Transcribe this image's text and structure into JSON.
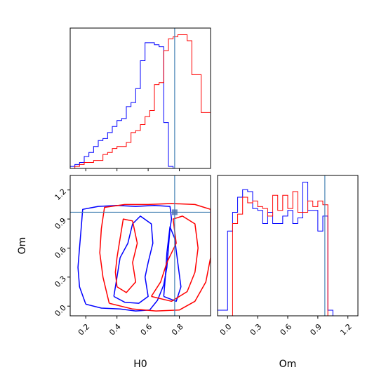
{
  "chart_data": {
    "type": "corner",
    "parameters": [
      "H0",
      "Om"
    ],
    "truth": {
      "H0": 0.77,
      "Om": 0.97
    },
    "truth_color": "#4682b4",
    "series": [
      {
        "color": "#0000ff"
      },
      {
        "color": "#ff0000"
      }
    ],
    "panels": [
      {
        "id": "hist-H0",
        "type": "histogram",
        "xlim": [
          0.1,
          1.0
        ],
        "xticks": [
          0.2,
          0.4,
          0.6,
          0.8
        ],
        "show_xtick_labels": false,
        "bin_edges": [
          0.1,
          0.13,
          0.16,
          0.19,
          0.22,
          0.25,
          0.28,
          0.31,
          0.34,
          0.37,
          0.4,
          0.43,
          0.46,
          0.49,
          0.52,
          0.55,
          0.58,
          0.61,
          0.64,
          0.67,
          0.7,
          0.73,
          0.76,
          0.79,
          0.82,
          0.85,
          0.88,
          0.91,
          0.94,
          0.97,
          1.0
        ],
        "counts": [
          [
            1,
            2,
            3,
            6,
            8,
            11,
            14,
            15,
            18,
            21,
            24,
            25,
            31,
            33,
            40,
            54,
            63,
            63,
            62,
            61,
            23,
            1,
            0,
            0,
            0,
            0,
            0,
            0,
            0,
            0
          ],
          [
            0,
            1,
            2,
            3,
            3,
            4,
            4,
            7,
            8,
            10,
            11,
            11,
            13,
            18,
            19,
            22,
            26,
            29,
            42,
            43,
            59,
            65,
            66,
            67,
            67,
            64,
            47,
            47,
            28,
            28
          ]
        ]
      },
      {
        "id": "contour-H0-Om",
        "type": "contour",
        "xlim": [
          0.1,
          1.0
        ],
        "ylim": [
          -0.1,
          1.35
        ],
        "xticks": [
          0.2,
          0.4,
          0.6,
          0.8
        ],
        "yticks": [
          0.0,
          0.3,
          0.6,
          0.9,
          1.2
        ],
        "xtick_labels": [
          "0.2",
          "0.4",
          "0.6",
          "0.8"
        ],
        "ytick_labels": [
          "0.0",
          "0.3",
          "0.6",
          "0.9",
          "1.2"
        ],
        "xlabel": "H0",
        "ylabel": "Om",
        "contours": [
          [
            [
              [
                0.2,
                0.02
              ],
              [
                0.3,
                -0.02
              ],
              [
                0.42,
                -0.03
              ],
              [
                0.52,
                -0.05
              ],
              [
                0.61,
                -0.04
              ],
              [
                0.66,
                0.06
              ],
              [
                0.7,
                0.22
              ],
              [
                0.72,
                0.4
              ],
              [
                0.73,
                0.6
              ],
              [
                0.74,
                0.8
              ],
              [
                0.75,
                0.9
              ],
              [
                0.74,
                1.03
              ],
              [
                0.64,
                1.04
              ],
              [
                0.52,
                1.03
              ],
              [
                0.4,
                1.04
              ],
              [
                0.28,
                1.03
              ],
              [
                0.18,
                1.0
              ],
              [
                0.17,
                0.8
              ],
              [
                0.16,
                0.6
              ],
              [
                0.15,
                0.4
              ],
              [
                0.16,
                0.2
              ],
              [
                0.2,
                0.02
              ]
            ],
            [
              [
                0.38,
                0.1
              ],
              [
                0.45,
                0.04
              ],
              [
                0.54,
                0.03
              ],
              [
                0.6,
                0.1
              ],
              [
                0.58,
                0.3
              ],
              [
                0.6,
                0.45
              ],
              [
                0.63,
                0.65
              ],
              [
                0.62,
                0.85
              ],
              [
                0.55,
                0.93
              ],
              [
                0.5,
                0.85
              ],
              [
                0.47,
                0.65
              ],
              [
                0.42,
                0.5
              ],
              [
                0.4,
                0.3
              ],
              [
                0.38,
                0.1
              ]
            ],
            [
              [
                0.7,
                0.1
              ],
              [
                0.78,
                0.05
              ],
              [
                0.81,
                0.2
              ],
              [
                0.79,
                0.45
              ],
              [
                0.77,
                0.7
              ],
              [
                0.74,
                0.82
              ],
              [
                0.72,
                0.55
              ],
              [
                0.71,
                0.3
              ],
              [
                0.7,
                0.1
              ]
            ]
          ],
          [
            [
              [
                0.35,
                0.03
              ],
              [
                0.5,
                -0.03
              ],
              [
                0.65,
                -0.05
              ],
              [
                0.8,
                -0.04
              ],
              [
                0.9,
                0.05
              ],
              [
                0.97,
                0.25
              ],
              [
                1.0,
                0.5
              ],
              [
                1.0,
                0.75
              ],
              [
                1.0,
                1.0
              ],
              [
                0.9,
                1.05
              ],
              [
                0.75,
                1.06
              ],
              [
                0.6,
                1.05
              ],
              [
                0.45,
                1.05
              ],
              [
                0.32,
                1.02
              ],
              [
                0.3,
                0.8
              ],
              [
                0.29,
                0.55
              ],
              [
                0.31,
                0.3
              ],
              [
                0.35,
                0.03
              ]
            ],
            [
              [
                0.62,
                0.1
              ],
              [
                0.75,
                0.05
              ],
              [
                0.85,
                0.15
              ],
              [
                0.9,
                0.35
              ],
              [
                0.92,
                0.6
              ],
              [
                0.9,
                0.85
              ],
              [
                0.82,
                0.93
              ],
              [
                0.76,
                0.9
              ],
              [
                0.78,
                0.65
              ],
              [
                0.72,
                0.45
              ],
              [
                0.68,
                0.25
              ],
              [
                0.62,
                0.1
              ]
            ],
            [
              [
                0.4,
                0.2
              ],
              [
                0.46,
                0.14
              ],
              [
                0.52,
                0.25
              ],
              [
                0.5,
                0.45
              ],
              [
                0.53,
                0.65
              ],
              [
                0.5,
                0.88
              ],
              [
                0.44,
                0.9
              ],
              [
                0.42,
                0.7
              ],
              [
                0.4,
                0.5
              ],
              [
                0.39,
                0.35
              ],
              [
                0.4,
                0.2
              ]
            ]
          ]
        ]
      },
      {
        "id": "hist-Om",
        "type": "histogram",
        "xlim": [
          -0.1,
          1.3
        ],
        "xticks": [
          0.0,
          0.3,
          0.6,
          0.9,
          1.2
        ],
        "xtick_labels": [
          "0.0",
          "0.3",
          "0.6",
          "0.9",
          "1.2"
        ],
        "xlabel": "Om",
        "bin_edges": [
          -0.1,
          -0.05,
          0.0,
          0.05,
          0.1,
          0.15,
          0.2,
          0.25,
          0.3,
          0.35,
          0.4,
          0.45,
          0.5,
          0.55,
          0.6,
          0.65,
          0.7,
          0.75,
          0.8,
          0.85,
          0.9,
          0.95,
          1.0,
          1.05,
          1.1
        ],
        "counts": [
          [
            3,
            3,
            45,
            55,
            63,
            67,
            66,
            57,
            56,
            49,
            55,
            49,
            49,
            53,
            56,
            49,
            52,
            71,
            56,
            56,
            45,
            53,
            3,
            0
          ],
          [
            0,
            0,
            0,
            49,
            54,
            63,
            60,
            61,
            58,
            57,
            53,
            64,
            56,
            64,
            57,
            66,
            55,
            55,
            61,
            58,
            61,
            59,
            0,
            0
          ]
        ]
      }
    ]
  }
}
